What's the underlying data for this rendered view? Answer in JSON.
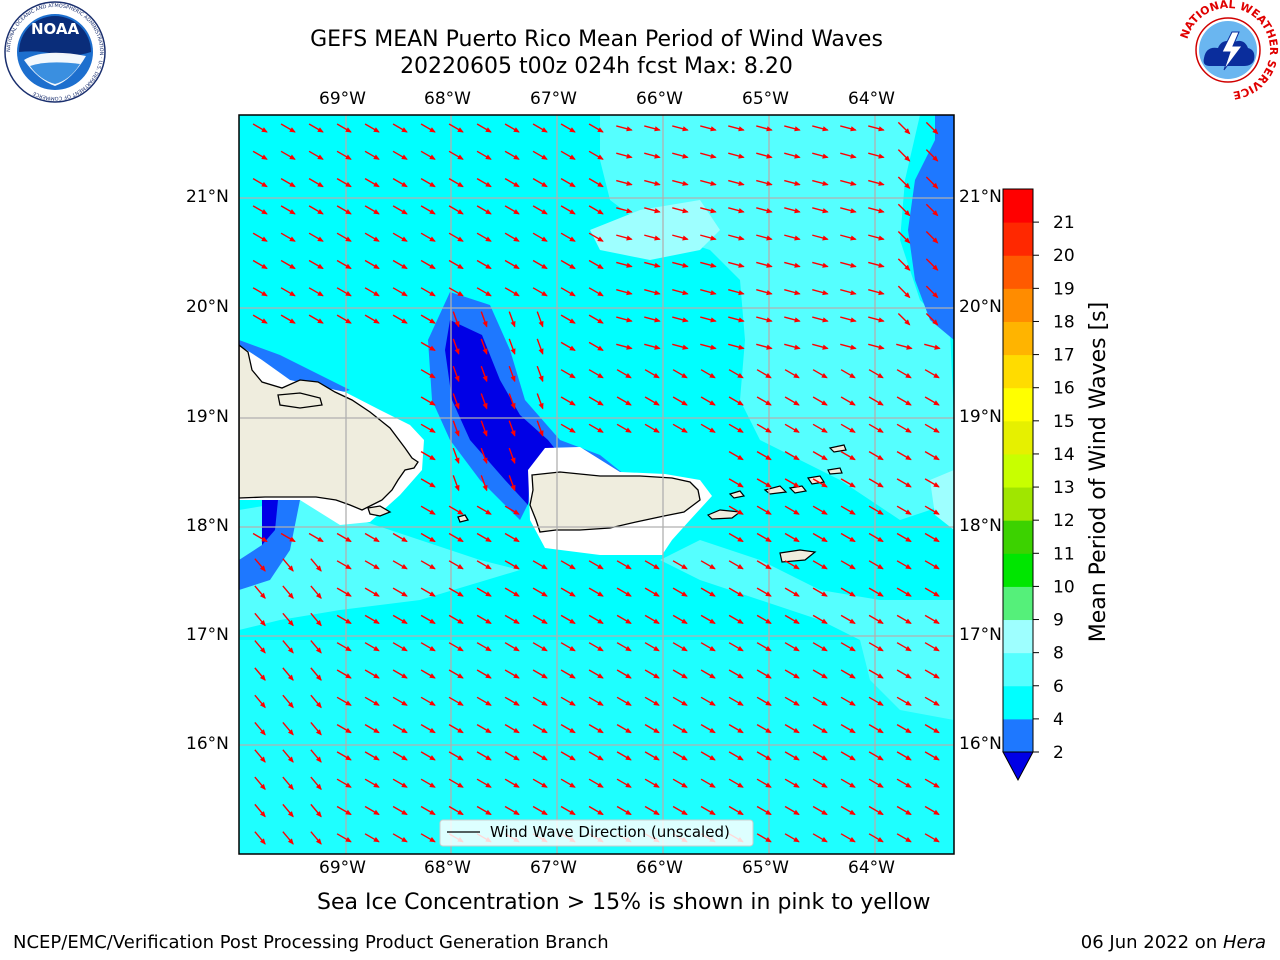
{
  "header": {
    "title_line1": "GEFS MEAN Puerto Rico Mean Period of Wind Waves",
    "title_line2": "20220605 t00z 024h fcst   Max: 8.20",
    "noaa_logo_text": "NOAA",
    "noaa_seal_ring_text": "NATIONAL OCEANIC AND ATMOSPHERIC ADMINISTRATION · U.S. DEPARTMENT OF COMMERCE",
    "nws_logo_ring_text": "NATIONAL WEATHER SERVICE"
  },
  "map": {
    "lon_ticks": [
      "69°W",
      "68°W",
      "67°W",
      "66°W",
      "65°W",
      "64°W"
    ],
    "lat_ticks": [
      "21°N",
      "20°N",
      "19°N",
      "18°N",
      "17°N",
      "16°N"
    ],
    "legend_label": "Wind Wave Direction (unscaled)",
    "note": "Sea Ice Concentration > 15% is shown in pink to yellow",
    "max_value": 8.2,
    "colors": {
      "land": "#efedde",
      "grid": "#b0b0b0",
      "arrow": "#ff0000",
      "band_2_4": "#1e78ff",
      "band_below_2": "#0000e6",
      "band_4_6": "#00ffff",
      "band_6_8": "#55ffff",
      "band_8_9": "#9effff"
    }
  },
  "colorbar": {
    "label": "Mean Period of Wind Waves [s]",
    "ticks": [
      "2",
      "4",
      "6",
      "8",
      "9",
      "10",
      "11",
      "12",
      "13",
      "14",
      "15",
      "16",
      "17",
      "18",
      "19",
      "20",
      "21"
    ],
    "band_colors": [
      "#1e78ff",
      "#00ffff",
      "#55ffff",
      "#9effff",
      "#55f07a",
      "#00e600",
      "#3cd200",
      "#a0e600",
      "#c8ff00",
      "#e6f000",
      "#ffff00",
      "#ffdc00",
      "#ffb400",
      "#ff8c00",
      "#ff5a00",
      "#ff2800",
      "#ff0000"
    ],
    "under_color": "#0000e6"
  },
  "footer": {
    "left": "NCEP/EMC/Verification Post Processing Product Generation Branch",
    "right_prefix": "06 Jun 2022 on ",
    "right_host": "Hera"
  }
}
